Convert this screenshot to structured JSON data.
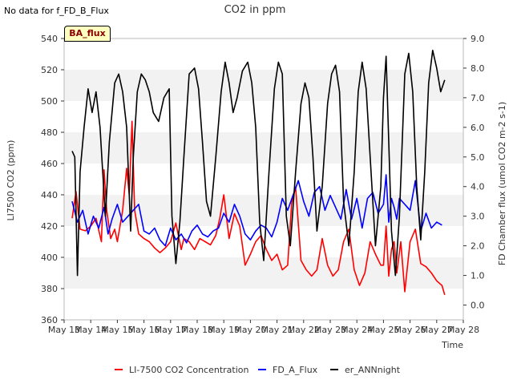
{
  "note": "No data for f_FD_B_Flux",
  "badge": "BA_flux",
  "chart_data": {
    "type": "line",
    "title": "CO2 in ppm",
    "xlabel": "Time",
    "ylabel": "LI7500 CO2 (ppm)",
    "y2label": "FD Chamber flux (umol CO2 m-2 s-1)",
    "xlim": [
      13,
      28
    ],
    "ylim": [
      360,
      540
    ],
    "y2lim": [
      -0.5,
      9.0
    ],
    "x_ticks": [
      13,
      14,
      15,
      16,
      17,
      18,
      19,
      20,
      21,
      22,
      23,
      24,
      25,
      26,
      27,
      28
    ],
    "x_tick_labels": [
      "May 13",
      "May 14",
      "May 15",
      "May 16",
      "May 17",
      "May 18",
      "May 19",
      "May 20",
      "May 21",
      "May 22",
      "May 23",
      "May 24",
      "May 25",
      "May 26",
      "May 27",
      "May 28"
    ],
    "y_ticks": [
      360,
      380,
      400,
      420,
      440,
      460,
      480,
      500,
      520,
      540
    ],
    "y2_ticks": [
      0.0,
      1.0,
      2.0,
      3.0,
      4.0,
      5.0,
      6.0,
      7.0,
      8.0,
      9.0
    ],
    "y2_tick_labels": [
      "0.0",
      "1.0",
      "2.0",
      "3.0",
      "4.0",
      "5.0",
      "6.0",
      "7.0",
      "8.0",
      "9.0"
    ],
    "grid": "horizontal alternating bands",
    "legend_position": "bottom",
    "series": [
      {
        "name": "LI-7500 CO2 Concentration",
        "axis": "left",
        "color": "#ff0000",
        "x": [
          13.3,
          13.45,
          13.6,
          13.8,
          14.0,
          14.2,
          14.4,
          14.5,
          14.6,
          14.75,
          14.9,
          15.0,
          15.1,
          15.2,
          15.35,
          15.45,
          15.55,
          15.65,
          15.8,
          16.0,
          16.2,
          16.4,
          16.6,
          16.8,
          17.0,
          17.2,
          17.4,
          17.5,
          17.7,
          17.9,
          18.1,
          18.3,
          18.5,
          18.7,
          18.85,
          19.0,
          19.2,
          19.4,
          19.6,
          19.8,
          20.0,
          20.2,
          20.4,
          20.6,
          20.8,
          21.0,
          21.2,
          21.4,
          21.55,
          21.7,
          21.9,
          22.1,
          22.3,
          22.5,
          22.7,
          22.9,
          23.1,
          23.3,
          23.5,
          23.7,
          23.9,
          24.1,
          24.3,
          24.5,
          24.7,
          24.9,
          25.0,
          25.1,
          25.2,
          25.3,
          25.4,
          25.5,
          25.65,
          25.8,
          26.0,
          26.2,
          26.4,
          26.6,
          26.8,
          27.0,
          27.2,
          27.3
        ],
        "values": [
          425,
          442,
          418,
          417,
          420,
          425,
          410,
          456,
          430,
          412,
          418,
          410,
          420,
          430,
          457,
          440,
          487,
          430,
          415,
          412,
          410,
          406,
          403,
          406,
          410,
          422,
          405,
          412,
          410,
          405,
          412,
          410,
          408,
          414,
          425,
          440,
          412,
          428,
          420,
          395,
          402,
          410,
          414,
          405,
          398,
          402,
          392,
          395,
          435,
          445,
          398,
          392,
          388,
          392,
          412,
          395,
          388,
          392,
          410,
          418,
          392,
          382,
          390,
          410,
          402,
          395,
          395,
          420,
          388,
          405,
          410,
          390,
          410,
          378,
          410,
          418,
          396,
          394,
          390,
          385,
          382,
          376
        ]
      },
      {
        "name": "FD_A_Flux",
        "axis": "right",
        "color": "#0000ff",
        "x": [
          13.3,
          13.5,
          13.7,
          13.9,
          14.1,
          14.3,
          14.5,
          14.65,
          14.8,
          15.0,
          15.2,
          15.4,
          15.6,
          15.8,
          16.0,
          16.2,
          16.4,
          16.6,
          16.8,
          17.0,
          17.2,
          17.4,
          17.6,
          17.8,
          18.0,
          18.2,
          18.4,
          18.6,
          18.8,
          19.0,
          19.2,
          19.4,
          19.6,
          19.8,
          20.0,
          20.2,
          20.4,
          20.6,
          20.8,
          21.0,
          21.2,
          21.4,
          21.6,
          21.8,
          22.0,
          22.2,
          22.4,
          22.6,
          22.8,
          23.0,
          23.2,
          23.4,
          23.6,
          23.8,
          24.0,
          24.2,
          24.4,
          24.6,
          24.8,
          25.0,
          25.1,
          25.2,
          25.3,
          25.4,
          25.5,
          25.6,
          25.8,
          26.0,
          26.2,
          26.4,
          26.6,
          26.8,
          27.0,
          27.2
        ],
        "values": [
          3.5,
          2.8,
          3.2,
          2.4,
          3.0,
          2.6,
          3.3,
          2.4,
          2.9,
          3.4,
          2.8,
          3.0,
          3.2,
          3.4,
          2.5,
          2.4,
          2.6,
          2.2,
          2.0,
          2.6,
          2.2,
          2.4,
          2.1,
          2.5,
          2.7,
          2.4,
          2.3,
          2.5,
          2.6,
          3.1,
          2.8,
          3.4,
          3.0,
          2.4,
          2.2,
          2.5,
          2.7,
          2.6,
          2.3,
          2.8,
          3.6,
          3.2,
          3.7,
          4.2,
          3.5,
          3.0,
          3.8,
          4.0,
          3.2,
          3.7,
          3.3,
          2.9,
          3.9,
          2.9,
          3.6,
          2.6,
          3.6,
          3.8,
          3.1,
          3.4,
          4.4,
          2.8,
          3.6,
          3.3,
          2.9,
          3.6,
          3.4,
          3.2,
          4.2,
          2.5,
          3.1,
          2.6,
          2.8,
          2.7
        ]
      },
      {
        "name": "er_ANNnight",
        "axis": "right",
        "color": "#000000",
        "x": [
          13.3,
          13.4,
          13.5,
          13.6,
          13.75,
          13.9,
          14.05,
          14.2,
          14.35,
          14.45,
          14.55,
          14.7,
          14.9,
          15.05,
          15.2,
          15.35,
          15.5,
          15.6,
          15.75,
          15.9,
          16.05,
          16.2,
          16.35,
          16.55,
          16.75,
          16.95,
          17.05,
          17.2,
          17.35,
          17.5,
          17.7,
          17.9,
          18.05,
          18.2,
          18.35,
          18.5,
          18.7,
          18.9,
          19.05,
          19.2,
          19.35,
          19.5,
          19.7,
          19.9,
          20.05,
          20.2,
          20.35,
          20.5,
          20.7,
          20.9,
          21.05,
          21.2,
          21.35,
          21.5,
          21.7,
          21.9,
          22.05,
          22.2,
          22.35,
          22.5,
          22.7,
          22.9,
          23.05,
          23.2,
          23.35,
          23.5,
          23.7,
          23.9,
          24.05,
          24.2,
          24.35,
          24.5,
          24.7,
          24.9,
          25.0,
          25.1,
          25.2,
          25.3,
          25.45,
          25.6,
          25.8,
          25.95,
          26.1,
          26.25,
          26.4,
          26.55,
          26.7,
          26.85,
          27.0,
          27.15,
          27.3
        ],
        "values": [
          5.2,
          5.0,
          1.0,
          4.5,
          6.0,
          7.3,
          6.5,
          7.2,
          6.0,
          4.5,
          3.0,
          5.5,
          7.5,
          7.8,
          7.2,
          6.0,
          2.5,
          5.0,
          7.2,
          7.8,
          7.6,
          7.2,
          6.5,
          6.2,
          7.0,
          7.3,
          3.0,
          1.4,
          2.8,
          5.0,
          7.8,
          8.0,
          7.3,
          5.5,
          3.5,
          3.0,
          5.0,
          7.2,
          8.2,
          7.5,
          6.5,
          7.0,
          7.9,
          8.2,
          7.5,
          6.0,
          2.8,
          1.5,
          4.5,
          7.3,
          8.2,
          7.8,
          3.0,
          2.0,
          4.5,
          6.8,
          7.5,
          7.0,
          5.0,
          2.5,
          4.0,
          6.8,
          7.8,
          8.1,
          7.2,
          3.5,
          2.0,
          4.5,
          7.2,
          8.2,
          7.3,
          5.0,
          2.0,
          4.0,
          7.0,
          8.4,
          5.5,
          2.5,
          1.0,
          3.0,
          7.8,
          8.5,
          7.2,
          4.0,
          2.2,
          4.5,
          7.5,
          8.6,
          8.0,
          7.2,
          7.6
        ]
      }
    ]
  }
}
